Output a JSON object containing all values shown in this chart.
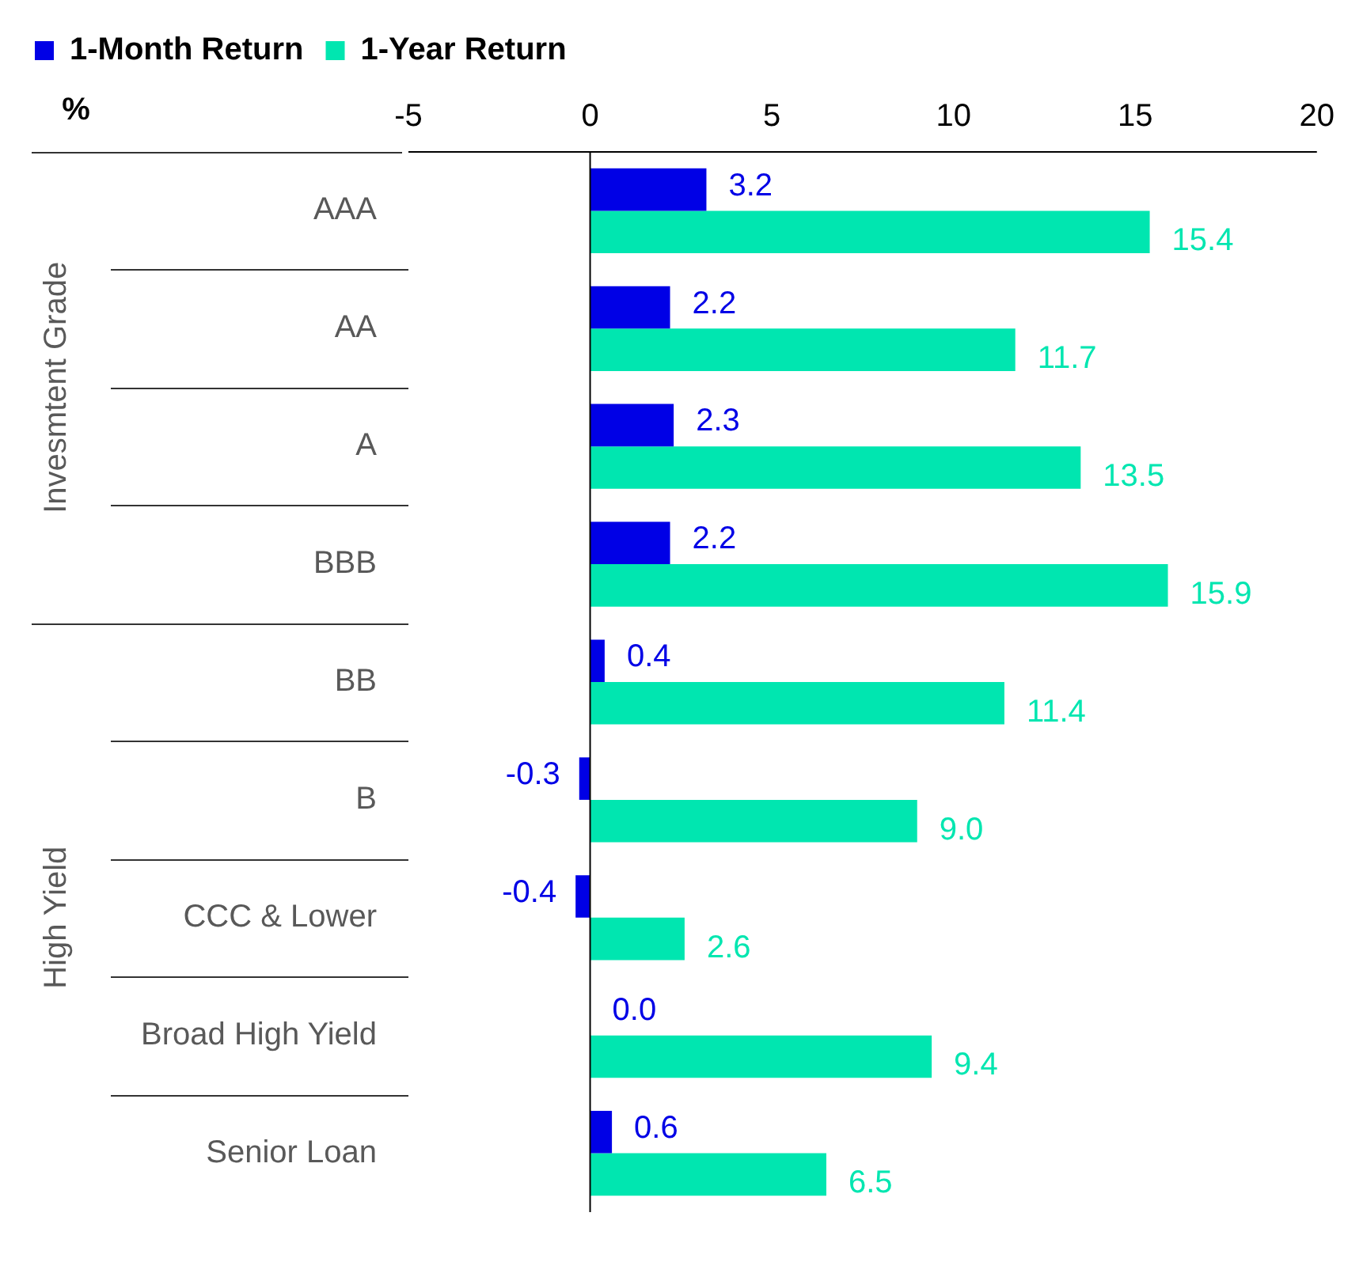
{
  "chart_data": {
    "type": "bar",
    "orientation": "horizontal",
    "xlabel": "%",
    "categories": [
      "AAA",
      "AA",
      "A",
      "BBB",
      "BB",
      "B",
      "CCC & Lower",
      "Broad High Yield",
      "Senior Loan"
    ],
    "series": [
      {
        "name": "1-Month Return",
        "color": "#0000e6",
        "values": [
          3.2,
          2.2,
          2.3,
          2.2,
          0.4,
          -0.3,
          -0.4,
          0.0,
          0.6
        ],
        "value_labels": [
          "3.2",
          "2.2",
          "2.3",
          "2.2",
          "0.4",
          "-0.3",
          "-0.4",
          "0.0",
          "0.6"
        ]
      },
      {
        "name": "1-Year Return",
        "color": "#00e6b0",
        "values": [
          15.4,
          11.7,
          13.5,
          15.9,
          11.4,
          9.0,
          2.6,
          9.4,
          6.5
        ],
        "value_labels": [
          "15.4",
          "11.7",
          "13.5",
          "15.9",
          "11.4",
          "9.0",
          "2.6",
          "9.4",
          "6.5"
        ]
      }
    ],
    "xlim": [
      -5,
      20
    ],
    "xticks": [
      -5,
      0,
      5,
      10,
      15,
      20
    ],
    "grid": false,
    "legend": "top left",
    "ref_lines": [
      {
        "axis": "x",
        "value": 0,
        "color": "#000000"
      }
    ],
    "annotations": [
      "Invesmtent Grade",
      "High Yield"
    ]
  }
}
